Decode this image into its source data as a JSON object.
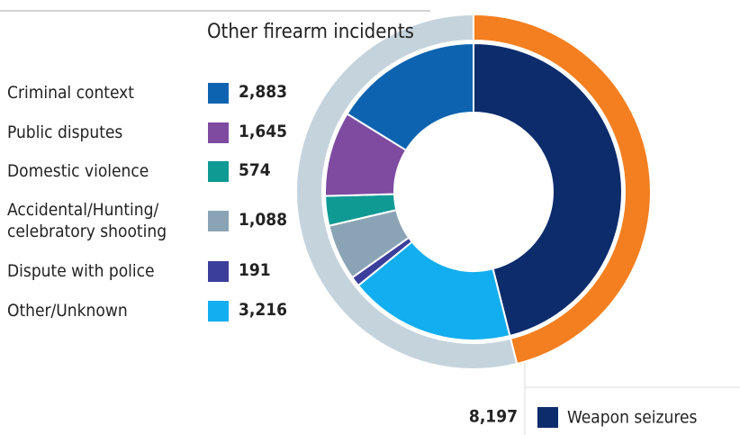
{
  "chart_data": {
    "type": "donut",
    "title": "Other firearm incidents",
    "categories": [
      "Criminal context",
      "Public disputes",
      "Domestic violence",
      "Accidental/Hunting/ celebratory shooting",
      "Dispute with police",
      "Other/Unknown"
    ],
    "values": [
      2883,
      1645,
      574,
      1088,
      191,
      3216
    ],
    "value_labels": [
      "2,883",
      "1,645",
      "574",
      "1,088",
      "191",
      "3,216"
    ],
    "colors": [
      "#0e63b0",
      "#7e4ba1",
      "#0f9a94",
      "#8ba4b5",
      "#3b3e9a",
      "#13aeef"
    ],
    "highlight": {
      "name": "Weapon seizures",
      "value": 8197,
      "value_label": "8,197",
      "color": "#0d2c6c"
    },
    "outer_colors": [
      "#f47f20",
      "#c5d3dd"
    ]
  }
}
